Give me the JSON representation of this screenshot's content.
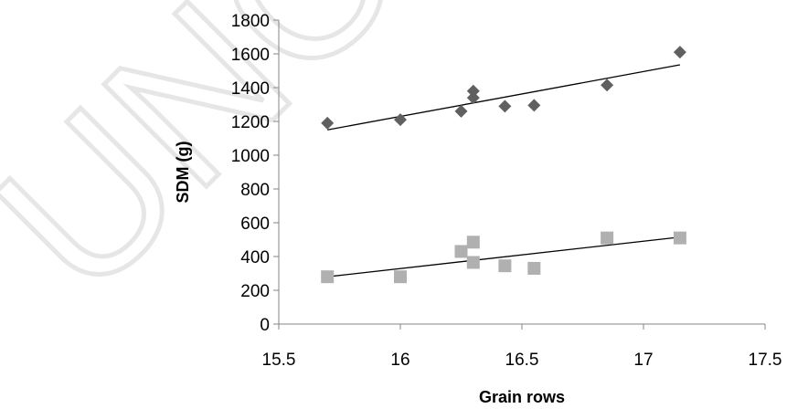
{
  "chart_data": {
    "type": "scatter",
    "title": "",
    "xlabel": "Grain rows",
    "ylabel": "SDM (g)",
    "xlim": [
      15.5,
      17.5
    ],
    "ylim": [
      0,
      1800
    ],
    "xticks": [
      15.5,
      16,
      16.5,
      17,
      17.5
    ],
    "xtick_labels": [
      "15.5",
      "16",
      "16.5",
      "17",
      "17.5"
    ],
    "yticks": [
      0,
      200,
      400,
      600,
      800,
      1000,
      1200,
      1400,
      1600,
      1800
    ],
    "ytick_labels": [
      "0",
      "200",
      "400",
      "600",
      "800",
      "1000",
      "1200",
      "1400",
      "1600",
      "1800"
    ],
    "grid": false,
    "legend": "none",
    "series": [
      {
        "marker": "diamond",
        "color": "#606060",
        "points": [
          {
            "x": 15.7,
            "y": 1190
          },
          {
            "x": 16.0,
            "y": 1210
          },
          {
            "x": 16.25,
            "y": 1260
          },
          {
            "x": 16.3,
            "y": 1340
          },
          {
            "x": 16.3,
            "y": 1380
          },
          {
            "x": 16.43,
            "y": 1290
          },
          {
            "x": 16.55,
            "y": 1295
          },
          {
            "x": 16.85,
            "y": 1415
          },
          {
            "x": 17.15,
            "y": 1610
          }
        ],
        "trendline": {
          "x": [
            15.7,
            17.15
          ],
          "y": [
            1150,
            1535
          ]
        }
      },
      {
        "marker": "square",
        "color": "#b0b0b0",
        "points": [
          {
            "x": 15.7,
            "y": 280
          },
          {
            "x": 16.0,
            "y": 280
          },
          {
            "x": 16.25,
            "y": 430
          },
          {
            "x": 16.3,
            "y": 365
          },
          {
            "x": 16.3,
            "y": 485
          },
          {
            "x": 16.43,
            "y": 345
          },
          {
            "x": 16.55,
            "y": 330
          },
          {
            "x": 16.85,
            "y": 510
          },
          {
            "x": 17.15,
            "y": 510
          }
        ],
        "trendline": {
          "x": [
            15.7,
            17.15
          ],
          "y": [
            280,
            515
          ]
        }
      }
    ],
    "trendline_color": "#000000",
    "axis_color": "#868686"
  },
  "watermark": {
    "text": "UNC",
    "color": "#e6e6e6"
  }
}
